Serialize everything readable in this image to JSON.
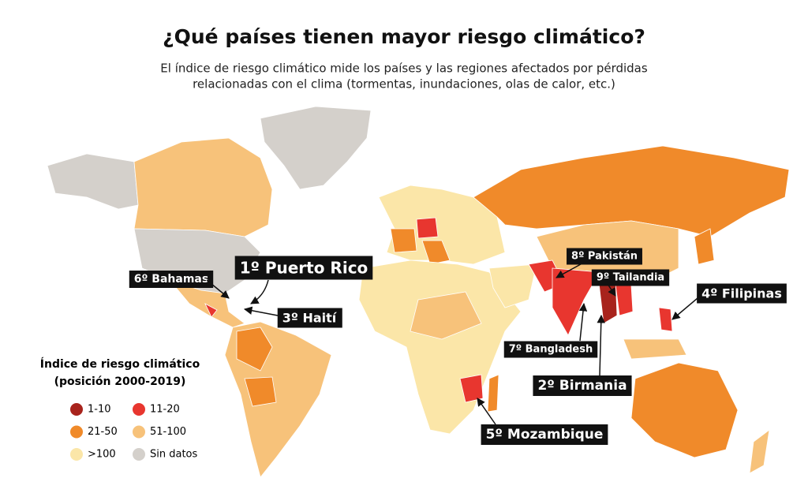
{
  "header": {
    "title": "¿Qué países tienen mayor riesgo climático?",
    "subtitle": [
      "El índice de riesgo climático mide los países y las regiones afectados por pérdidas",
      "relacionadas con el clima (tormentas, inundaciones, olas de calor, etc.)"
    ]
  },
  "legend": {
    "title": "Índice de riesgo climático",
    "subtitle": "(posición 2000-2019)",
    "items": [
      {
        "label": "1-10",
        "color": "#a8231c"
      },
      {
        "label": "11-20",
        "color": "#e8362f"
      },
      {
        "label": "21-50",
        "color": "#f08a2a"
      },
      {
        "label": "51-100",
        "color": "#f7c27a"
      },
      {
        "label": ">100",
        "color": "#fbe6a8"
      },
      {
        "label": "Sin datos",
        "color": "#d4d0cb"
      }
    ]
  },
  "callouts": [
    {
      "label": "1º Puerto Rico"
    },
    {
      "label": "6º Bahamas"
    },
    {
      "label": "3º Haití"
    },
    {
      "label": "8º Pakistán"
    },
    {
      "label": "9º Tailandia"
    },
    {
      "label": "4º Filipinas"
    },
    {
      "label": "7º Bangladesh"
    },
    {
      "label": "2º Birmania"
    },
    {
      "label": "5º Mozambique"
    }
  ]
}
